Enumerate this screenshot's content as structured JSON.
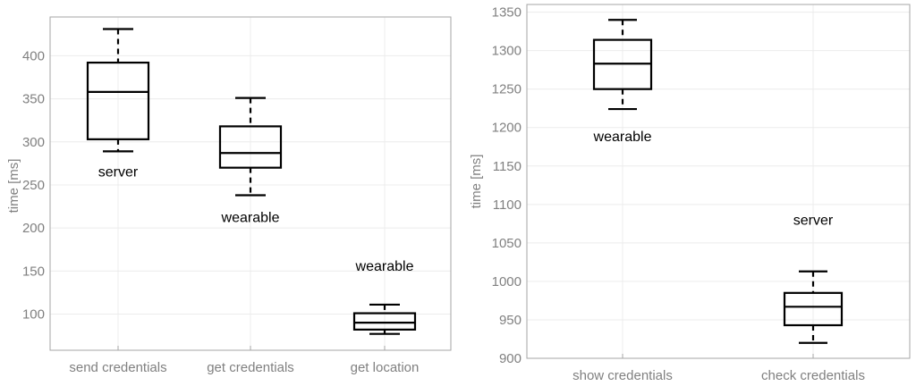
{
  "chart_data": [
    {
      "type": "box",
      "title": "",
      "xlabel": "",
      "ylabel": "time [ms]",
      "ylim": [
        58,
        445
      ],
      "yticks": [
        100,
        150,
        200,
        250,
        300,
        350,
        400
      ],
      "grid": true,
      "categories": [
        "send credentials",
        "get credentials",
        "get location"
      ],
      "annotations": [
        "server",
        "wearable",
        "wearable"
      ],
      "boxes": [
        {
          "category": "send credentials",
          "whisker_low": 289,
          "q1": 303,
          "median": 358,
          "q3": 392,
          "whisker_high": 431,
          "annotation": "server"
        },
        {
          "category": "get credentials",
          "whisker_low": 238,
          "q1": 270,
          "median": 287,
          "q3": 318,
          "whisker_high": 351,
          "annotation": "wearable"
        },
        {
          "category": "get location",
          "whisker_low": 77,
          "q1": 82,
          "median": 90,
          "q3": 101,
          "whisker_high": 111,
          "annotation": "wearable"
        }
      ]
    },
    {
      "type": "box",
      "title": "",
      "xlabel": "",
      "ylabel": "time [ms]",
      "ylim": [
        900,
        1360
      ],
      "yticks": [
        900,
        950,
        1000,
        1050,
        1100,
        1150,
        1200,
        1250,
        1300,
        1350
      ],
      "grid": true,
      "categories": [
        "show credentials",
        "check credentials"
      ],
      "annotations": [
        "wearable",
        "server"
      ],
      "boxes": [
        {
          "category": "show credentials",
          "whisker_low": 1224,
          "q1": 1250,
          "median": 1283,
          "q3": 1314,
          "whisker_high": 1340,
          "annotation": "wearable"
        },
        {
          "category": "check credentials",
          "whisker_low": 920,
          "q1": 943,
          "median": 967,
          "q3": 985,
          "whisker_high": 1013,
          "annotation": "server"
        }
      ]
    }
  ]
}
